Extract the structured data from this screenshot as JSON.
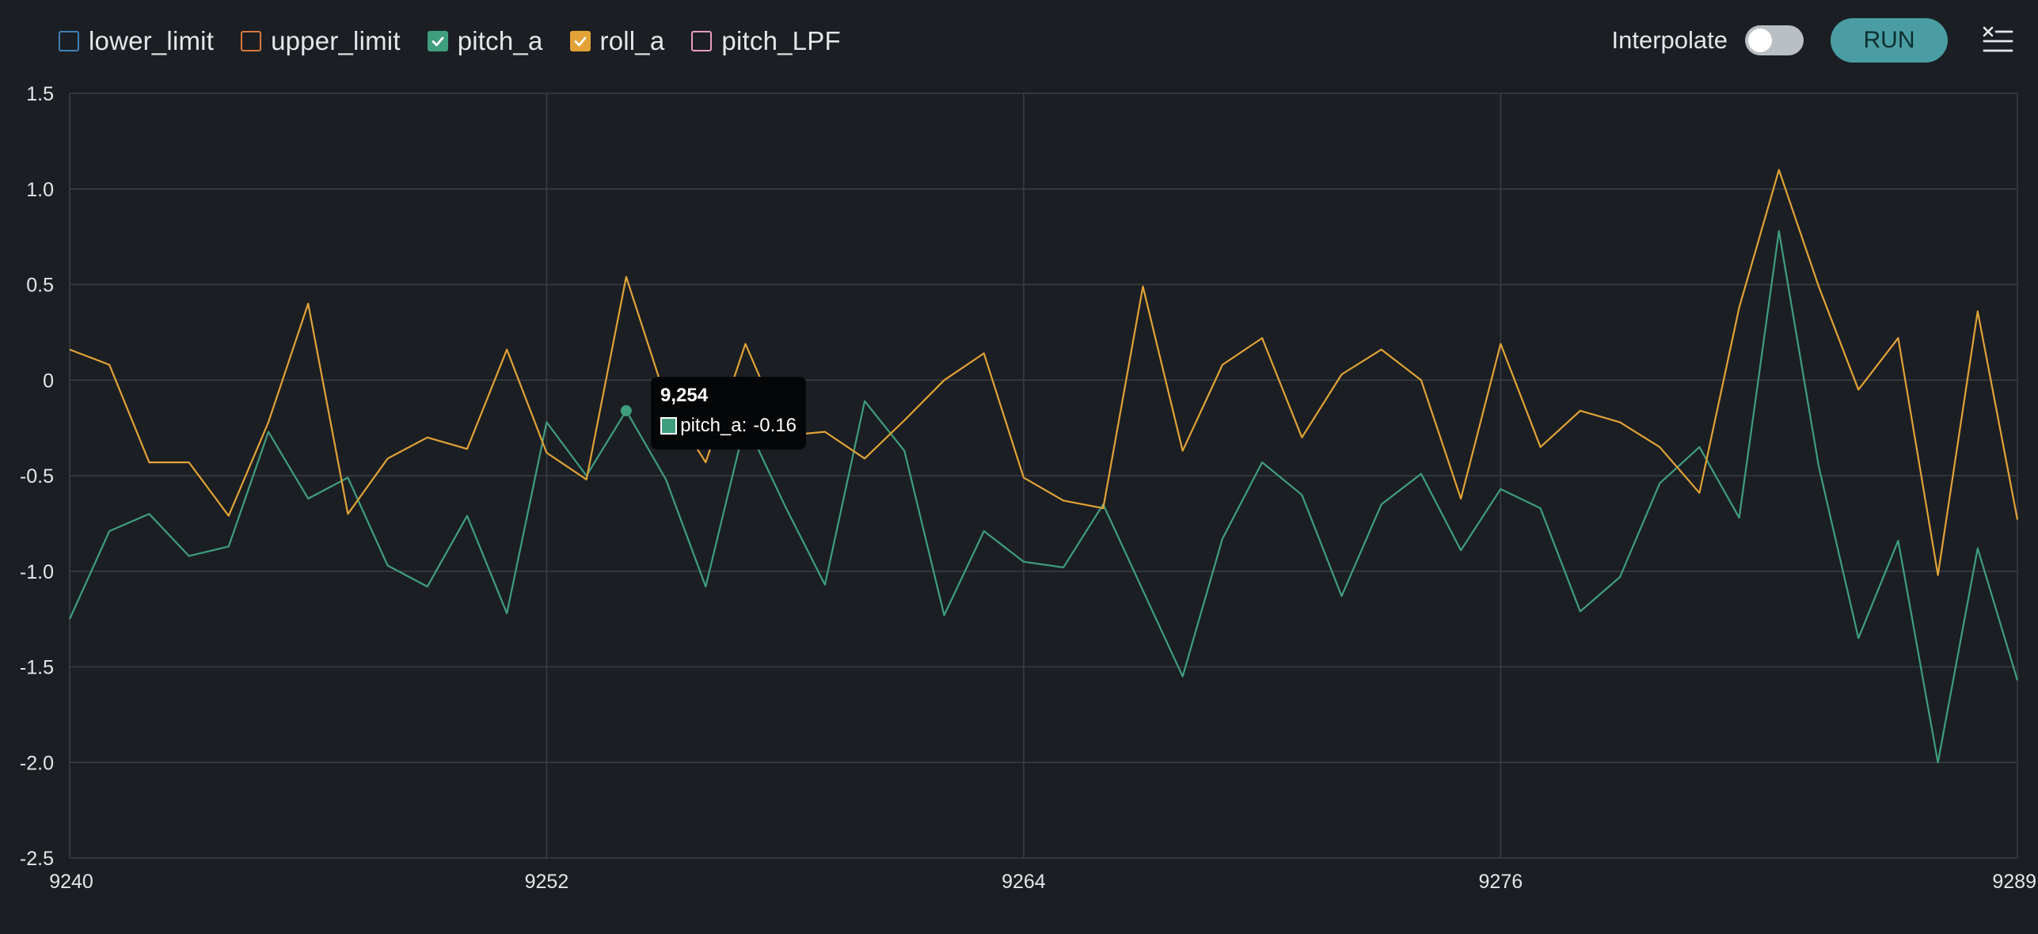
{
  "legend": [
    {
      "name": "lower_limit",
      "checked": false,
      "color": "#3e7fb8"
    },
    {
      "name": "upper_limit",
      "checked": false,
      "color": "#d87a3e"
    },
    {
      "name": "pitch_a",
      "checked": true,
      "color": "#3f9e7e"
    },
    {
      "name": "roll_a",
      "checked": true,
      "color": "#e2a236"
    },
    {
      "name": "pitch_LPF",
      "checked": false,
      "color": "#e79bbd"
    }
  ],
  "controls": {
    "interpolate_label": "Interpolate",
    "interpolate_on": false,
    "run_label": "RUN",
    "clear_icon": "clear-list-icon"
  },
  "tooltip": {
    "title": "9,254",
    "series": "pitch_a",
    "value": "-0.16",
    "color": "#3f9e7e"
  },
  "chart_data": {
    "type": "line",
    "title": "",
    "xlabel": "",
    "ylabel": "",
    "xlim": [
      9240,
      9289
    ],
    "ylim": [
      -2.5,
      1.5
    ],
    "x_ticks": [
      "9240",
      "9252",
      "9264",
      "9276",
      "9289"
    ],
    "y_ticks": [
      "1.5",
      "1.0",
      "0.5",
      "0",
      "-0.5",
      "-1.0",
      "-1.5",
      "-2.0",
      "-2.5"
    ],
    "grid": true,
    "x": [
      9240,
      9241,
      9242,
      9243,
      9244,
      9245,
      9246,
      9247,
      9248,
      9249,
      9250,
      9251,
      9252,
      9253,
      9254,
      9255,
      9256,
      9257,
      9258,
      9259,
      9260,
      9261,
      9262,
      9263,
      9264,
      9265,
      9266,
      9267,
      9268,
      9269,
      9270,
      9271,
      9272,
      9273,
      9274,
      9275,
      9276,
      9277,
      9278,
      9279,
      9280,
      9281,
      9282,
      9283,
      9284,
      9285,
      9286,
      9287,
      9288,
      9289
    ],
    "series": [
      {
        "name": "pitch_a",
        "color": "#3f9e7e",
        "values": [
          -1.25,
          -0.79,
          -0.7,
          -0.92,
          -0.87,
          -0.27,
          -0.62,
          -0.51,
          -0.97,
          -1.08,
          -0.71,
          -1.22,
          -0.22,
          -0.5,
          -0.16,
          -0.52,
          -1.08,
          -0.22,
          -0.66,
          -1.07,
          -0.11,
          -0.37,
          -1.23,
          -0.79,
          -0.95,
          -0.98,
          -0.65,
          -1.1,
          -1.55,
          -0.83,
          -0.43,
          -0.6,
          -1.13,
          -0.65,
          -0.49,
          -0.89,
          -0.57,
          -0.67,
          -1.21,
          -1.03,
          -0.54,
          -0.35,
          -0.72,
          0.78,
          -0.45,
          -1.35,
          -0.84,
          -2.0,
          -0.88,
          -1.57
        ]
      },
      {
        "name": "roll_a",
        "color": "#e2a236",
        "values": [
          0.16,
          0.08,
          -0.43,
          -0.43,
          -0.71,
          -0.22,
          0.4,
          -0.7,
          -0.41,
          -0.3,
          -0.36,
          0.16,
          -0.38,
          -0.52,
          0.54,
          -0.1,
          -0.43,
          0.19,
          -0.29,
          -0.27,
          -0.41,
          -0.21,
          0.0,
          0.14,
          -0.51,
          -0.63,
          -0.67,
          0.49,
          -0.37,
          0.08,
          0.22,
          -0.3,
          0.03,
          0.16,
          0.0,
          -0.62,
          0.19,
          -0.35,
          -0.16,
          -0.22,
          -0.35,
          -0.59,
          0.38,
          1.1,
          0.49,
          -0.05,
          0.22,
          -1.02,
          0.36,
          -0.73
        ]
      }
    ],
    "highlight": {
      "series": "pitch_a",
      "x": 9254,
      "y": -0.16
    }
  }
}
